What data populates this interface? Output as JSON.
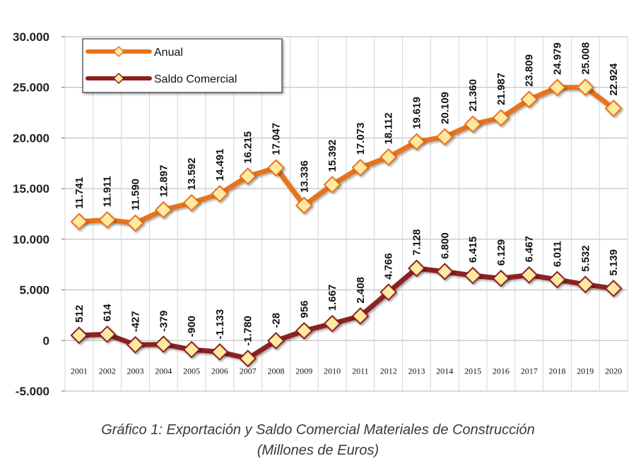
{
  "chart_data": {
    "type": "line",
    "categories": [
      "2001",
      "2002",
      "2003",
      "2004",
      "2005",
      "2006",
      "2007",
      "2008",
      "2009",
      "2010",
      "2011",
      "2012",
      "2013",
      "2014",
      "2015",
      "2016",
      "2017",
      "2018",
      "2019",
      "2020"
    ],
    "series": [
      {
        "name": "Anual",
        "values": [
          11741,
          11911,
          11590,
          12897,
          13592,
          14491,
          16215,
          17047,
          13336,
          15392,
          17073,
          18112,
          19619,
          20109,
          21360,
          21987,
          23809,
          24979,
          25008,
          22924
        ],
        "labels": [
          "11.741",
          "11.911",
          "11.590",
          "12.897",
          "13.592",
          "14.491",
          "16.215",
          "17.047",
          "13.336",
          "15.392",
          "17.073",
          "18.112",
          "19.619",
          "20.109",
          "21.360",
          "21.987",
          "23.809",
          "24.979",
          "25.008",
          "22.924"
        ],
        "color": "#E8731A",
        "marker_fill": "#FFE9A0"
      },
      {
        "name": "Saldo Comercial",
        "values": [
          512,
          614,
          -427,
          -379,
          -900,
          -1133,
          -1780,
          -28,
          956,
          1667,
          2408,
          4766,
          7128,
          6800,
          6415,
          6129,
          6467,
          6011,
          5532,
          5139
        ],
        "labels": [
          "512",
          "614",
          "-427",
          "-379",
          "-900",
          "-1.133",
          "-1.780",
          "-28",
          "956",
          "1.667",
          "2.408",
          "4.766",
          "7.128",
          "6.800",
          "6.415",
          "6.129",
          "6.467",
          "6.011",
          "5.532",
          "5.139"
        ],
        "color": "#8B2020",
        "marker_fill": "#FFE9A0"
      }
    ],
    "y_ticks": [
      30000,
      25000,
      20000,
      15000,
      10000,
      5000,
      0,
      -5000
    ],
    "y_tick_labels": [
      "30.000",
      "25.000",
      "20.000",
      "15.000",
      "10.000",
      "5.000",
      "0",
      "-5.000"
    ],
    "ylim": [
      -5000,
      30000
    ],
    "grid": true,
    "legend": "top-left",
    "title": "",
    "xlabel": "",
    "ylabel": ""
  },
  "caption": {
    "line1": "Gráfico 1: Exportación y Saldo Comercial Materiales de Construcción",
    "line2": "(Millones de Euros)"
  }
}
